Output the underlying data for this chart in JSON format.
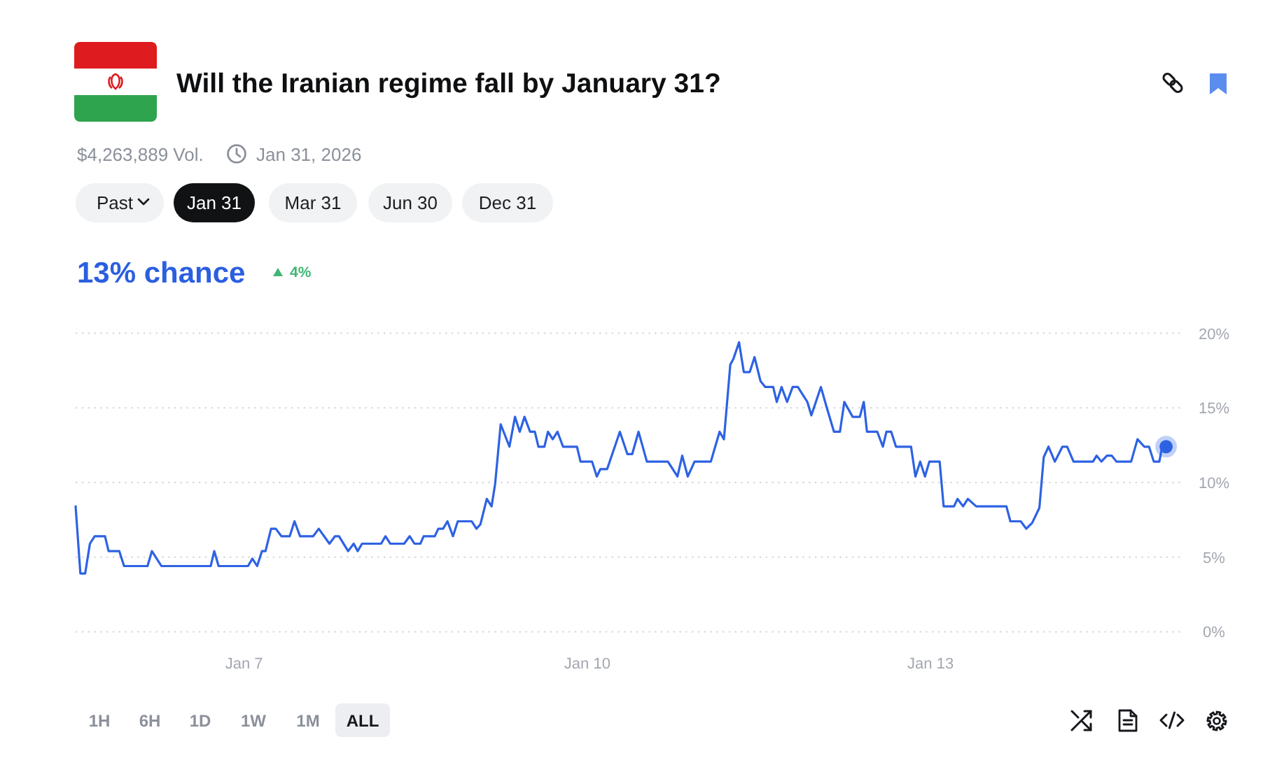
{
  "chart_data": {
    "type": "line",
    "title": "Will the Iranian regime fall by January 31?",
    "subtitle": "13% chance",
    "annotations": [
      "$4,263,889 Vol.",
      "Jan 31, 2026",
      "Past",
      "Jan 31",
      "Mar 31",
      "Jun 30",
      "Dec 31",
      "4%",
      "1H",
      "6H",
      "1D",
      "1W",
      "1M",
      "ALL"
    ],
    "xlim": [
      "2026-01-05T12:40",
      "2026-01-15T05:00"
    ],
    "xticks": [
      {
        "value": "2026-01-07T00:00",
        "label": "Jan 7"
      },
      {
        "value": "2026-01-10T00:00",
        "label": "Jan 10"
      },
      {
        "value": "2026-01-13T00:00",
        "label": "Jan 13"
      }
    ],
    "ylim": [
      0,
      20
    ],
    "yticks": [
      {
        "value": 0,
        "label": "0%"
      },
      {
        "value": 5,
        "label": "5%"
      },
      {
        "value": 10,
        "label": "10%"
      },
      {
        "value": 15,
        "label": "15%"
      },
      {
        "value": 20,
        "label": "20%"
      }
    ],
    "grid": "y",
    "series": [
      {
        "color": "#2d62e3",
        "line_style": "solid",
        "x": [
          "2026-01-05T12:40",
          "2026-01-05T13:40",
          "2026-01-05T14:40",
          "2026-01-05T15:40",
          "2026-01-05T16:40",
          "2026-01-05T18:50",
          "2026-01-05T19:35",
          "2026-01-05T21:50",
          "2026-01-05T22:50",
          "2026-01-06T03:45",
          "2026-01-06T04:40",
          "2026-01-06T06:40",
          "2026-01-06T17:00",
          "2026-01-06T17:45",
          "2026-01-06T18:40",
          "2026-01-07T00:50",
          "2026-01-07T01:45",
          "2026-01-07T02:45",
          "2026-01-07T03:45",
          "2026-01-07T04:30",
          "2026-01-07T05:40",
          "2026-01-07T06:40",
          "2026-01-07T07:50",
          "2026-01-07T09:35",
          "2026-01-07T10:35",
          "2026-01-07T11:45",
          "2026-01-07T14:30",
          "2026-01-07T15:40",
          "2026-01-07T17:55",
          "2026-01-07T19:05",
          "2026-01-07T19:55",
          "2026-01-07T21:50",
          "2026-01-07T23:00",
          "2026-01-07T23:50",
          "2026-01-08T00:45",
          "2026-01-08T04:45",
          "2026-01-08T05:40",
          "2026-01-08T06:40",
          "2026-01-08T09:35",
          "2026-01-08T10:45",
          "2026-01-08T11:45",
          "2026-01-08T13:00",
          "2026-01-08T13:40",
          "2026-01-08T16:00",
          "2026-01-08T16:45",
          "2026-01-08T17:45",
          "2026-01-08T18:40",
          "2026-01-08T19:50",
          "2026-01-08T20:50",
          "2026-01-08T23:45",
          "2026-01-09T00:45",
          "2026-01-09T01:35",
          "2026-01-09T02:55",
          "2026-01-09T03:55",
          "2026-01-09T04:40",
          "2026-01-09T05:50",
          "2026-01-09T07:40",
          "2026-01-09T08:50",
          "2026-01-09T09:50",
          "2026-01-09T10:50",
          "2026-01-09T12:00",
          "2026-01-09T13:00",
          "2026-01-09T13:45",
          "2026-01-09T15:00",
          "2026-01-09T15:45",
          "2026-01-09T16:45",
          "2026-01-09T17:45",
          "2026-01-09T18:55",
          "2026-01-09T21:50",
          "2026-01-09T22:35",
          "2026-01-10T01:00",
          "2026-01-10T02:00",
          "2026-01-10T02:45",
          "2026-01-10T04:10",
          "2026-01-10T06:50",
          "2026-01-10T08:25",
          "2026-01-10T09:25",
          "2026-01-10T10:45",
          "2026-01-10T12:30",
          "2026-01-10T16:55",
          "2026-01-10T18:55",
          "2026-01-10T19:55",
          "2026-01-10T21:05",
          "2026-01-10T22:30",
          "2026-01-11T01:55",
          "2026-01-11T03:45",
          "2026-01-11T04:40",
          "2026-01-11T06:00",
          "2026-01-11T06:40",
          "2026-01-11T07:50",
          "2026-01-11T08:50",
          "2026-01-11T10:05",
          "2026-01-11T11:05",
          "2026-01-11T12:20",
          "2026-01-11T13:20",
          "2026-01-11T15:00",
          "2026-01-11T15:45",
          "2026-01-11T16:45",
          "2026-01-11T17:55",
          "2026-01-11T19:05",
          "2026-01-11T20:10",
          "2026-01-11T21:10",
          "2026-01-11T22:10",
          "2026-01-11T23:00",
          "2026-01-12T01:00",
          "2026-01-12T02:15",
          "2026-01-12T03:45",
          "2026-01-12T05:00",
          "2026-01-12T05:55",
          "2026-01-12T07:40",
          "2026-01-12T09:10",
          "2026-01-12T10:00",
          "2026-01-12T10:40",
          "2026-01-12T12:50",
          "2026-01-12T14:00",
          "2026-01-12T14:45",
          "2026-01-12T15:45",
          "2026-01-12T16:45",
          "2026-01-12T19:55",
          "2026-01-12T20:50",
          "2026-01-12T21:50",
          "2026-01-12T22:50",
          "2026-01-12T23:45",
          "2026-01-13T01:55",
          "2026-01-13T02:45",
          "2026-01-13T04:55",
          "2026-01-13T05:40",
          "2026-01-13T06:50",
          "2026-01-13T07:50",
          "2026-01-13T09:35",
          "2026-01-13T15:55",
          "2026-01-13T16:45",
          "2026-01-13T18:55",
          "2026-01-13T20:05",
          "2026-01-13T21:20",
          "2026-01-13T22:50",
          "2026-01-13T23:45",
          "2026-01-14T00:45",
          "2026-01-14T02:05",
          "2026-01-14T03:40",
          "2026-01-14T04:40",
          "2026-01-14T06:00",
          "2026-01-14T10:05",
          "2026-01-14T10:50",
          "2026-01-14T11:50",
          "2026-01-14T13:00",
          "2026-01-14T14:00",
          "2026-01-14T15:00",
          "2026-01-14T18:05",
          "2026-01-14T19:25",
          "2026-01-14T20:50",
          "2026-01-14T21:50",
          "2026-01-14T22:50",
          "2026-01-15T00:00",
          "2026-01-15T00:35",
          "2026-01-15T01:25"
        ],
        "values": [
          8.4,
          3.9,
          3.9,
          5.9,
          6.4,
          6.4,
          5.4,
          5.4,
          4.4,
          4.4,
          5.4,
          4.4,
          4.4,
          5.4,
          4.4,
          4.4,
          4.9,
          4.4,
          5.4,
          5.4,
          6.9,
          6.9,
          6.4,
          6.4,
          7.4,
          6.4,
          6.4,
          6.9,
          5.9,
          6.4,
          6.4,
          5.4,
          5.9,
          5.4,
          5.9,
          5.9,
          6.4,
          5.9,
          5.9,
          6.4,
          5.9,
          5.9,
          6.4,
          6.4,
          6.9,
          6.9,
          7.4,
          6.4,
          7.4,
          7.4,
          6.9,
          7.2,
          8.9,
          8.4,
          9.9,
          13.9,
          12.4,
          14.4,
          13.4,
          14.4,
          13.4,
          13.4,
          12.4,
          12.4,
          13.4,
          12.9,
          13.4,
          12.4,
          12.4,
          11.4,
          11.4,
          10.4,
          10.9,
          10.9,
          13.4,
          11.9,
          11.9,
          13.4,
          11.4,
          11.4,
          10.4,
          11.8,
          10.4,
          11.4,
          11.4,
          13.4,
          12.9,
          17.9,
          18.3,
          19.4,
          17.4,
          17.4,
          18.4,
          16.8,
          16.4,
          16.4,
          15.4,
          16.4,
          15.4,
          16.4,
          16.4,
          15.9,
          15.4,
          14.5,
          16.4,
          15.0,
          13.4,
          13.4,
          15.4,
          14.4,
          14.4,
          15.4,
          13.4,
          13.4,
          12.4,
          13.4,
          13.4,
          12.4,
          12.4,
          10.4,
          11.4,
          10.4,
          11.4,
          11.4,
          8.4,
          8.4,
          8.9,
          8.4,
          8.9,
          8.4,
          8.4,
          7.4,
          7.4,
          6.9,
          7.3,
          8.3,
          11.7,
          12.4,
          11.4,
          12.4,
          12.4,
          11.4,
          11.4,
          11.8,
          11.4,
          11.8,
          11.8,
          11.4,
          11.4,
          12.9,
          12.4,
          12.4,
          11.4,
          11.4,
          12.4,
          12.4
        ]
      },
      {
        "type": "scatter",
        "color": "#2d62e3",
        "marker": "circle",
        "x": [
          "2026-01-15T01:25"
        ],
        "values": [
          12.4
        ]
      }
    ]
  }
}
